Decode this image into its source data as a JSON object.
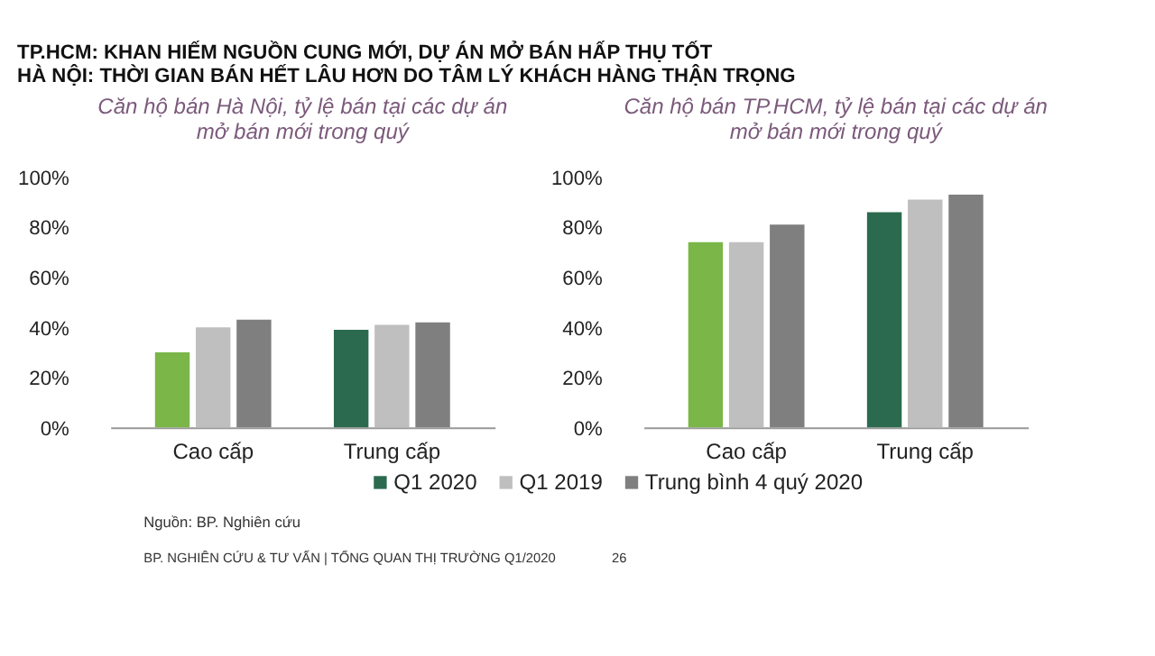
{
  "chart_data": [
    {
      "type": "bar",
      "title": [
        "TP.HCM: KHAN HIẾM NGUỒN CUNG MỚI, DỰ ÁN MỞ BÁN HẤP THỤ TỐT",
        "HÀ NỘI: THỜI GIAN BÁN HẾT LÂU HƠN DO TÂM LÝ KHÁCH HÀNG THẬN TRỌNG"
      ],
      "subtitle": "Căn hộ bán Hà Nội, tỷ lệ bán tại các dự án mở bán mới trong quý",
      "categories": [
        "Cao cấp",
        "Trung cấp"
      ],
      "series": [
        {
          "name": "Q1 2020",
          "colors": [
            "#7ab648",
            "#2b6a4e"
          ],
          "values": [
            30,
            39
          ]
        },
        {
          "name": "Q1 2019",
          "color": "#bfbfbf",
          "values": [
            40,
            41
          ]
        },
        {
          "name": "Trung bình 4 quý 2020",
          "color": "#7f7f7f",
          "values": [
            43,
            42
          ]
        }
      ],
      "ylim": [
        0,
        100
      ],
      "yticks": [
        {
          "value": 0,
          "label": "0%"
        },
        {
          "value": 20,
          "label": "20%"
        },
        {
          "value": 40,
          "label": "40%"
        },
        {
          "value": 60,
          "label": "60%"
        },
        {
          "value": 80,
          "label": "80%"
        },
        {
          "value": 100,
          "label": "100%"
        }
      ],
      "legend": "bottom"
    },
    {
      "type": "bar",
      "subtitle": "Căn hộ bán TP.HCM, tỷ lệ bán tại các dự án mở bán mới trong quý",
      "categories": [
        "Cao cấp",
        "Trung cấp"
      ],
      "series": [
        {
          "name": "Q1 2020",
          "colors": [
            "#7ab648",
            "#2b6a4e"
          ],
          "values": [
            74,
            86
          ]
        },
        {
          "name": "Q1 2019",
          "color": "#bfbfbf",
          "values": [
            74,
            91
          ]
        },
        {
          "name": "Trung bình 4 quý 2020",
          "color": "#7f7f7f",
          "values": [
            81,
            93
          ]
        }
      ],
      "ylim": [
        0,
        100
      ],
      "yticks": [
        {
          "value": 0,
          "label": "0%"
        },
        {
          "value": 20,
          "label": "20%"
        },
        {
          "value": 40,
          "label": "40%"
        },
        {
          "value": 60,
          "label": "60%"
        },
        {
          "value": 80,
          "label": "80%"
        },
        {
          "value": 100,
          "label": "100%"
        }
      ],
      "legend": "bottom",
      "annotations": [
        "Nguồn: BP. Nghiên cứu",
        "BP. NGHIÊN CỨU & TƯ VẤN | TỔNG QUAN THỊ TRƯỜNG Q1/2020",
        "26"
      ]
    }
  ]
}
